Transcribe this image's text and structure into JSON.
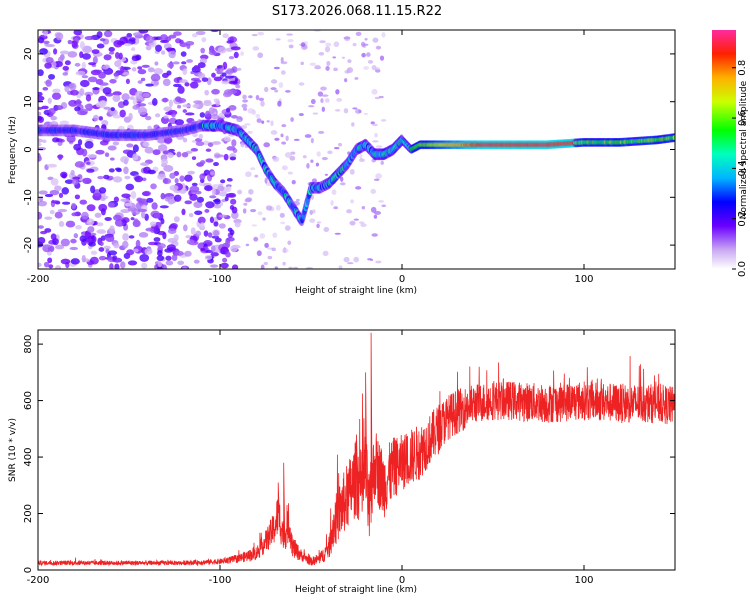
{
  "title": "S173.2026.068.11.15.R22",
  "chart_data": [
    {
      "type": "heatmap",
      "xlabel": "Height of straight line (km)",
      "ylabel": "Frequency (Hz)",
      "xlim": [
        -200,
        150
      ],
      "ylim": [
        -25,
        25
      ],
      "xticks": [
        -200,
        -100,
        0,
        100
      ],
      "yticks": [
        -20,
        -10,
        0,
        10,
        20
      ],
      "colorbar": {
        "label": "Normalized spectral amplitude",
        "range": [
          0,
          0.95
        ],
        "ticks": [
          0.0,
          0.2,
          0.4,
          0.6,
          0.8
        ]
      },
      "ridge": {
        "x": [
          -200,
          -180,
          -160,
          -140,
          -120,
          -110,
          -100,
          -90,
          -80,
          -75,
          -70,
          -65,
          -60,
          -55,
          -50,
          -45,
          -40,
          -35,
          -30,
          -25,
          -20,
          -15,
          -10,
          -5,
          0,
          5,
          10,
          20,
          40,
          60,
          80,
          100,
          120,
          140,
          150
        ],
        "freq": [
          4,
          4,
          3,
          3,
          4,
          5,
          5,
          4,
          0,
          -4,
          -7,
          -9,
          -12,
          -15,
          -8,
          -8,
          -7,
          -5,
          -3,
          0,
          1,
          -1,
          -1,
          0,
          2,
          0,
          1,
          1,
          1,
          1,
          1,
          1.5,
          1.5,
          2,
          2.5
        ]
      }
    },
    {
      "type": "line",
      "xlabel": "Height of straight line (km)",
      "ylabel": "SNR (10 * v/v)",
      "xlim": [
        -200,
        150
      ],
      "ylim": [
        0,
        850
      ],
      "xticks": [
        -200,
        -100,
        0,
        100
      ],
      "yticks": [
        0,
        200,
        400,
        600,
        800
      ],
      "color": "#ee2222",
      "series": [
        {
          "name": "SNR",
          "x": [
            -200,
            -180,
            -160,
            -140,
            -120,
            -100,
            -90,
            -80,
            -75,
            -70,
            -68,
            -65,
            -62,
            -60,
            -55,
            -50,
            -45,
            -40,
            -38,
            -35,
            -30,
            -27,
            -25,
            -22,
            -20,
            -18,
            -15,
            -10,
            -5,
            0,
            5,
            10,
            15,
            20,
            25,
            30,
            40,
            50,
            60,
            80,
            100,
            120,
            140,
            150
          ],
          "y": [
            25,
            25,
            25,
            25,
            25,
            30,
            40,
            60,
            100,
            150,
            200,
            120,
            160,
            80,
            50,
            30,
            40,
            80,
            150,
            200,
            260,
            300,
            330,
            280,
            350,
            200,
            380,
            300,
            360,
            380,
            400,
            420,
            460,
            500,
            540,
            560,
            590,
            600,
            600,
            590,
            600,
            590,
            590,
            580
          ],
          "spread": [
            8,
            8,
            8,
            8,
            8,
            10,
            15,
            25,
            40,
            60,
            80,
            60,
            60,
            40,
            20,
            15,
            20,
            40,
            80,
            100,
            120,
            130,
            140,
            140,
            150,
            140,
            130,
            120,
            110,
            100,
            100,
            100,
            90,
            90,
            80,
            80,
            70,
            70,
            70,
            70,
            70,
            70,
            70,
            70
          ],
          "peaks": [
            {
              "x": -17,
              "y": 840
            },
            {
              "x": -20,
              "y": 700
            },
            {
              "x": -25,
              "y": 480
            },
            {
              "x": -65,
              "y": 380
            },
            {
              "x": -68,
              "y": 310
            }
          ]
        }
      ]
    }
  ]
}
